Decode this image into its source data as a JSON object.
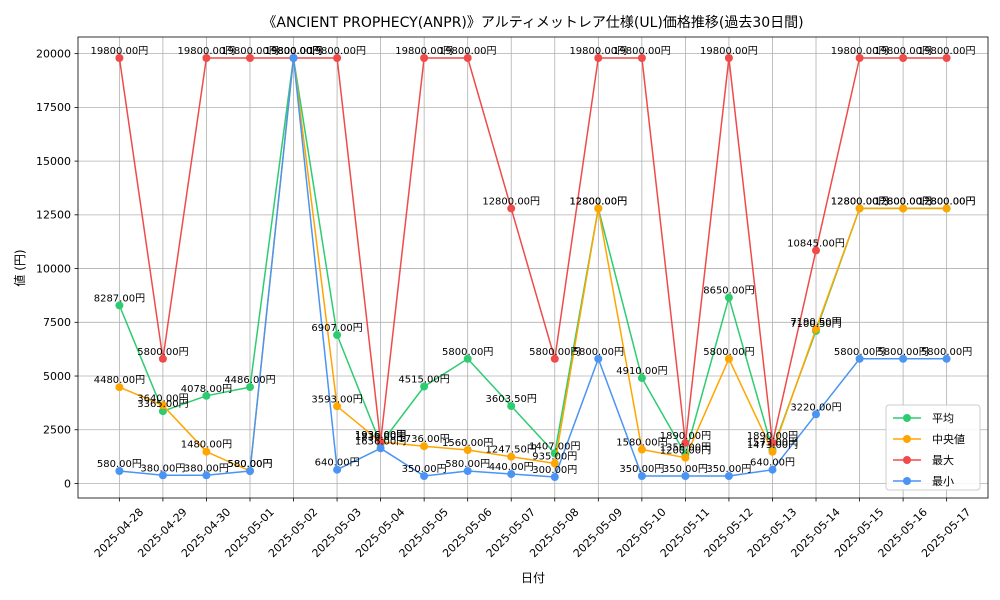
{
  "chart_data": {
    "type": "line",
    "title": "《ANCIENT PROPHECY(ANPR)》アルティメットレア仕様(UL)価格推移(過去30日間)",
    "xlabel": "日付",
    "ylabel": "値 (円)",
    "unit": "円",
    "x": [
      "2025-04-28",
      "2025-04-29",
      "2025-04-30",
      "2025-05-01",
      "2025-05-02",
      "2025-05-03",
      "2025-05-04",
      "2025-05-05",
      "2025-05-06",
      "2025-05-07",
      "2025-05-08",
      "2025-05-09",
      "2025-05-10",
      "2025-05-11",
      "2025-05-12",
      "2025-05-13",
      "2025-05-14",
      "2025-05-15",
      "2025-05-16",
      "2025-05-17"
    ],
    "yticks": [
      0,
      2500,
      5000,
      7500,
      10000,
      12500,
      15000,
      17500,
      20000
    ],
    "ylim": [
      -675,
      20775
    ],
    "grid": true,
    "legend_position": "lower right",
    "series": [
      {
        "name": "平均",
        "color": "#2ecc71",
        "values": [
          8287,
          3365,
          4078,
          4486,
          19800,
          6907,
          1836,
          4515,
          5800,
          3603.5,
          1407,
          12800,
          4910,
          1356,
          8650,
          1573,
          7100.5,
          12800,
          12800,
          12800
        ]
      },
      {
        "name": "中央値",
        "color": "#ffa500",
        "values": [
          4480,
          3640,
          1480,
          580,
          19800,
          3593,
          1936,
          1736,
          1560,
          1247.5,
          935,
          12800,
          1580,
          1200,
          5800,
          1473,
          7190.5,
          12800,
          12800,
          12800
        ]
      },
      {
        "name": "最大",
        "color": "#ef4b4b",
        "values": [
          19800,
          5800,
          19800,
          19800,
          19800,
          19800,
          1936,
          19800,
          19800,
          12800,
          5800,
          19800,
          19800,
          1890,
          19800,
          1890,
          10845,
          19800,
          19800,
          19800
        ]
      },
      {
        "name": "最小",
        "color": "#4a94f4",
        "values": [
          580,
          380,
          380,
          580,
          19800,
          640,
          1636,
          350,
          580,
          440,
          300,
          5800,
          350,
          350,
          350,
          640,
          3220,
          5800,
          5800,
          5800
        ]
      }
    ]
  }
}
